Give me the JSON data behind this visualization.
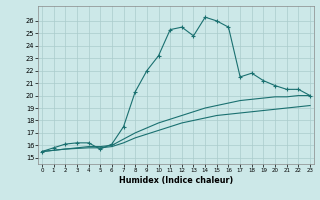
{
  "xlabel": "Humidex (Indice chaleur)",
  "bg_color": "#cce8e8",
  "grid_color": "#aacccc",
  "line_color": "#1a7070",
  "xlim": [
    0,
    23
  ],
  "ylim": [
    15,
    27
  ],
  "yticks": [
    15,
    16,
    17,
    18,
    19,
    20,
    21,
    22,
    23,
    24,
    25,
    26
  ],
  "xticks": [
    0,
    1,
    2,
    3,
    4,
    5,
    6,
    7,
    8,
    9,
    10,
    11,
    12,
    13,
    14,
    15,
    16,
    17,
    18,
    19,
    20,
    21,
    22,
    23
  ],
  "main_x": [
    0,
    1,
    2,
    3,
    4,
    5,
    6,
    7,
    8,
    9,
    10,
    11,
    12,
    13,
    14,
    15,
    16,
    17,
    18,
    19,
    20,
    21,
    22,
    23
  ],
  "main_y": [
    15.5,
    15.8,
    16.1,
    16.2,
    16.2,
    15.7,
    16.1,
    17.5,
    20.3,
    22.0,
    23.2,
    25.3,
    25.5,
    24.8,
    26.3,
    26.0,
    25.5,
    21.5,
    21.8,
    21.2,
    20.8,
    20.5,
    20.5,
    20.0
  ],
  "line2_x": [
    0,
    1,
    2,
    3,
    4,
    5,
    6,
    7,
    8,
    9,
    10,
    11,
    12,
    13,
    14,
    15,
    16,
    17,
    18,
    19,
    20,
    21,
    22,
    23
  ],
  "line2_y": [
    15.5,
    15.6,
    15.7,
    15.8,
    15.9,
    15.9,
    16.0,
    16.5,
    17.0,
    17.4,
    17.8,
    18.1,
    18.4,
    18.7,
    19.0,
    19.2,
    19.4,
    19.6,
    19.7,
    19.8,
    19.9,
    19.9,
    20.0,
    20.0
  ],
  "line3_x": [
    0,
    1,
    2,
    3,
    4,
    5,
    6,
    7,
    8,
    9,
    10,
    11,
    12,
    13,
    14,
    15,
    16,
    17,
    18,
    19,
    20,
    21,
    22,
    23
  ],
  "line3_y": [
    15.5,
    15.6,
    15.7,
    15.75,
    15.8,
    15.8,
    15.9,
    16.2,
    16.6,
    16.9,
    17.2,
    17.5,
    17.8,
    18.0,
    18.2,
    18.4,
    18.5,
    18.6,
    18.7,
    18.8,
    18.9,
    19.0,
    19.1,
    19.2
  ]
}
